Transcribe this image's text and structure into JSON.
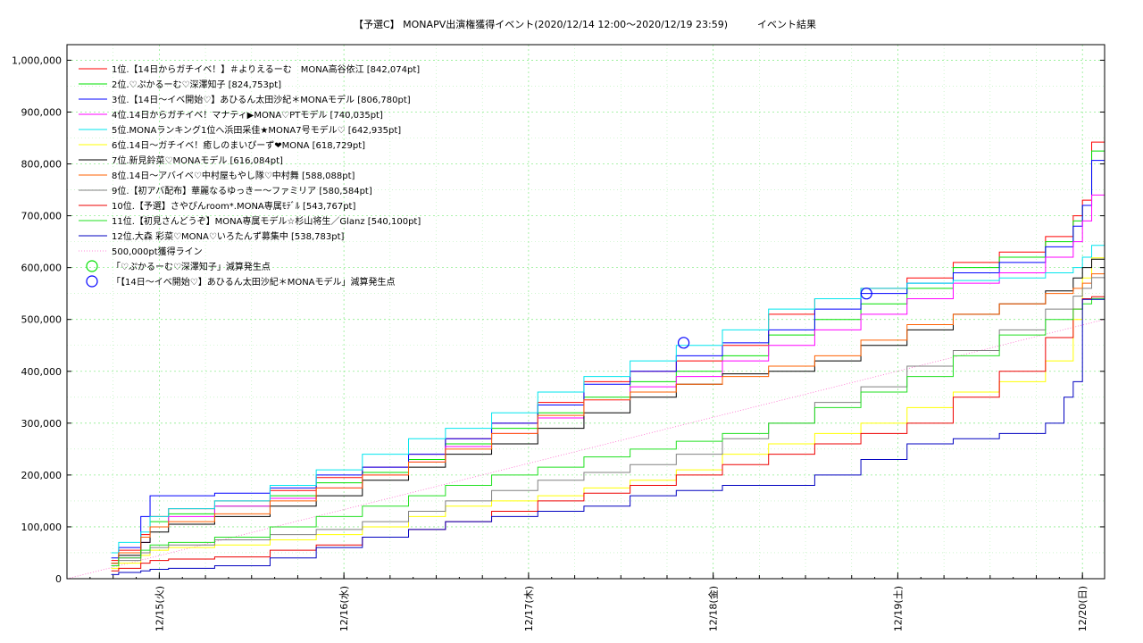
{
  "chart_data": {
    "type": "line",
    "title": "【予選C】 MONAPV出演権獲得イベント(2020/12/14 12:00〜2020/12/19 23:59)　　　イベント結果",
    "xlabel": "",
    "ylabel": "",
    "xlim": [
      0.5,
      6.12
    ],
    "ylim": [
      0,
      1030000
    ],
    "y_ticks": [
      0,
      100000,
      200000,
      300000,
      400000,
      500000,
      600000,
      700000,
      800000,
      900000,
      1000000
    ],
    "y_tick_labels": [
      "0",
      "100,000",
      "200,000",
      "300,000",
      "400,000",
      "500,000",
      "600,000",
      "700,000",
      "800,000",
      "900,000",
      "1,000,000"
    ],
    "x_ticks": [
      1,
      2,
      3,
      4,
      5,
      6
    ],
    "x_tick_labels": [
      "12/15(火)",
      "12/16(水)",
      "12/17(木)",
      "12/18(金)",
      "12/19(土)",
      "12/20(日)"
    ],
    "grid": true,
    "legend_position": "top-left",
    "series": [
      {
        "name": "1位.【14日からガチイベ！】＃よりえるーむ　MONA高谷依江 [842,074pt]",
        "color": "#ff0000",
        "x": [
          0.74,
          0.78,
          0.9,
          0.95,
          1.05,
          1.3,
          1.6,
          1.85,
          2.1,
          2.35,
          2.55,
          2.8,
          3.05,
          3.3,
          3.55,
          3.8,
          4.05,
          4.3,
          4.55,
          4.8,
          5.05,
          5.3,
          5.55,
          5.8,
          5.95,
          6.0,
          6.05,
          6.12
        ],
        "y": [
          35000,
          55000,
          85000,
          120000,
          135000,
          150000,
          170000,
          195000,
          215000,
          240000,
          270000,
          300000,
          340000,
          380000,
          400000,
          420000,
          450000,
          510000,
          540000,
          560000,
          580000,
          610000,
          630000,
          660000,
          700000,
          730000,
          842074,
          842074
        ]
      },
      {
        "name": "2位.♡ぷかるーむ♡深澤知子 [824,753pt]",
        "color": "#00e000",
        "x": [
          0.74,
          0.78,
          0.9,
          0.95,
          1.05,
          1.3,
          1.6,
          1.85,
          2.1,
          2.35,
          2.55,
          2.8,
          3.05,
          3.3,
          3.55,
          3.8,
          4.05,
          4.3,
          4.55,
          4.8,
          5.05,
          5.3,
          5.55,
          5.8,
          5.95,
          6.0,
          6.05,
          6.12
        ],
        "y": [
          30000,
          50000,
          80000,
          110000,
          125000,
          140000,
          160000,
          185000,
          205000,
          230000,
          260000,
          290000,
          320000,
          350000,
          380000,
          400000,
          430000,
          470000,
          500000,
          530000,
          560000,
          600000,
          620000,
          650000,
          690000,
          720000,
          824753,
          824753
        ]
      },
      {
        "name": "3位.【14日〜イベ開始♡】あひるん太田沙紀＊MONAモデル [806,780pt]",
        "color": "#0000ff",
        "x": [
          0.74,
          0.78,
          0.9,
          0.95,
          1.05,
          1.3,
          1.6,
          1.85,
          2.1,
          2.35,
          2.55,
          2.8,
          3.05,
          3.3,
          3.55,
          3.8,
          4.05,
          4.3,
          4.55,
          4.8,
          5.05,
          5.3,
          5.55,
          5.8,
          5.95,
          6.0,
          6.05,
          6.12
        ],
        "y": [
          40000,
          60000,
          120000,
          160000,
          160000,
          165000,
          175000,
          200000,
          215000,
          240000,
          270000,
          300000,
          335000,
          375000,
          400000,
          430000,
          455000,
          480000,
          520000,
          550000,
          570000,
          590000,
          610000,
          640000,
          680000,
          720000,
          806780,
          806780
        ]
      },
      {
        "name": "4位.14日からガチイベ！マナティ▶MONA♡PTモデル [740,035pt]",
        "color": "#ff00ff",
        "x": [
          0.74,
          0.78,
          0.9,
          0.95,
          1.05,
          1.3,
          1.6,
          1.85,
          2.1,
          2.35,
          2.55,
          2.8,
          3.05,
          3.3,
          3.55,
          3.8,
          4.05,
          4.3,
          4.55,
          4.8,
          5.05,
          5.3,
          5.55,
          5.8,
          5.95,
          6.0,
          6.05,
          6.12
        ],
        "y": [
          25000,
          40000,
          70000,
          100000,
          120000,
          140000,
          155000,
          175000,
          200000,
          225000,
          255000,
          280000,
          310000,
          345000,
          370000,
          390000,
          420000,
          450000,
          480000,
          510000,
          540000,
          570000,
          590000,
          620000,
          650000,
          690000,
          740035,
          740035
        ]
      },
      {
        "name": "5位.MONAランキング1位へ浜田采佳★MONA7号モデル♡ [642,935pt]",
        "color": "#00e5ee",
        "x": [
          0.74,
          0.78,
          0.9,
          0.95,
          1.05,
          1.3,
          1.6,
          1.85,
          2.1,
          2.35,
          2.55,
          2.8,
          3.05,
          3.3,
          3.55,
          3.8,
          4.05,
          4.3,
          4.55,
          4.8,
          5.05,
          5.3,
          5.55,
          5.8,
          5.95,
          6.0,
          6.05,
          6.12
        ],
        "y": [
          50000,
          70000,
          90000,
          120000,
          135000,
          150000,
          180000,
          210000,
          240000,
          270000,
          290000,
          320000,
          360000,
          390000,
          420000,
          450000,
          480000,
          520000,
          540000,
          560000,
          570000,
          575000,
          580000,
          590000,
          600000,
          620000,
          642935,
          642935
        ]
      },
      {
        "name": "6位.14日〜ガチイベ！癒しのまいぴーず❤MONA [618,729pt]",
        "color": "#ffff00",
        "x": [
          0.74,
          0.78,
          0.9,
          0.95,
          1.05,
          1.3,
          1.6,
          1.85,
          2.1,
          2.35,
          2.55,
          2.8,
          3.05,
          3.3,
          3.55,
          3.8,
          4.05,
          4.3,
          4.55,
          4.8,
          5.05,
          5.3,
          5.55,
          5.8,
          5.95,
          6.0,
          6.05,
          6.12
        ],
        "y": [
          20000,
          30000,
          45000,
          55000,
          60000,
          65000,
          75000,
          85000,
          100000,
          120000,
          140000,
          150000,
          160000,
          175000,
          190000,
          210000,
          240000,
          260000,
          280000,
          300000,
          330000,
          360000,
          380000,
          420000,
          500000,
          580000,
          618729,
          618729
        ]
      },
      {
        "name": "7位.新見鈴菜♡MONAモデル [616,084pt]",
        "color": "#000000",
        "x": [
          0.74,
          0.78,
          0.9,
          0.95,
          1.05,
          1.3,
          1.6,
          1.85,
          2.1,
          2.35,
          2.55,
          2.8,
          3.05,
          3.3,
          3.55,
          3.8,
          4.05,
          4.3,
          4.55,
          4.8,
          5.05,
          5.3,
          5.55,
          5.8,
          5.95,
          6.0,
          6.05,
          6.12
        ],
        "y": [
          30000,
          45000,
          70000,
          90000,
          105000,
          120000,
          140000,
          160000,
          190000,
          215000,
          240000,
          260000,
          290000,
          320000,
          350000,
          375000,
          395000,
          400000,
          420000,
          450000,
          480000,
          510000,
          530000,
          555000,
          580000,
          600000,
          616084,
          616084
        ]
      },
      {
        "name": "8位.14日〜アバイベ♡中村屋もやし隊♡中村舞 [588,088pt]",
        "color": "#ff6000",
        "x": [
          0.74,
          0.78,
          0.9,
          0.95,
          1.05,
          1.3,
          1.6,
          1.85,
          2.1,
          2.35,
          2.55,
          2.8,
          3.05,
          3.3,
          3.55,
          3.8,
          4.05,
          4.3,
          4.55,
          4.8,
          5.05,
          5.3,
          5.55,
          5.8,
          5.95,
          6.0,
          6.05,
          6.12
        ],
        "y": [
          30000,
          50000,
          80000,
          100000,
          110000,
          125000,
          150000,
          175000,
          200000,
          225000,
          250000,
          280000,
          315000,
          345000,
          360000,
          375000,
          390000,
          410000,
          430000,
          460000,
          490000,
          510000,
          530000,
          550000,
          560000,
          570000,
          588088,
          588088
        ]
      },
      {
        "name": "9位.【初アバ配布】華麗なるゆっきー〜ファミリア [580,584pt]",
        "color": "#808080",
        "x": [
          0.74,
          0.78,
          0.9,
          0.95,
          1.05,
          1.3,
          1.6,
          1.85,
          2.1,
          2.35,
          2.55,
          2.8,
          3.05,
          3.3,
          3.55,
          3.8,
          4.05,
          4.3,
          4.55,
          4.8,
          5.05,
          5.3,
          5.55,
          5.8,
          5.95,
          6.0,
          6.05,
          6.12
        ],
        "y": [
          25000,
          35000,
          50000,
          60000,
          65000,
          75000,
          85000,
          95000,
          110000,
          130000,
          150000,
          170000,
          190000,
          205000,
          220000,
          240000,
          270000,
          300000,
          340000,
          370000,
          410000,
          440000,
          480000,
          520000,
          545000,
          560000,
          580584,
          580584
        ]
      },
      {
        "name": "10位.【予選】さやぴんroom*.MONA専属ﾓﾃﾞﾙ [543,767pt]",
        "color": "#ee0000",
        "x": [
          0.74,
          0.78,
          0.9,
          0.95,
          1.05,
          1.3,
          1.6,
          1.85,
          2.1,
          2.35,
          2.55,
          2.8,
          3.05,
          3.3,
          3.55,
          3.8,
          4.05,
          4.3,
          4.55,
          4.8,
          5.05,
          5.3,
          5.55,
          5.8,
          5.95,
          6.0,
          6.05,
          6.12
        ],
        "y": [
          15000,
          20000,
          30000,
          35000,
          38000,
          42000,
          55000,
          65000,
          80000,
          95000,
          110000,
          130000,
          150000,
          165000,
          180000,
          200000,
          220000,
          240000,
          260000,
          280000,
          300000,
          350000,
          400000,
          465000,
          520000,
          540000,
          543767,
          543767
        ]
      },
      {
        "name": "11位.【初見さんどうぞ】MONA専属モデル☆杉山将生／Glanz [540,100pt]",
        "color": "#20e020",
        "x": [
          0.74,
          0.78,
          0.9,
          0.95,
          1.05,
          1.3,
          1.6,
          1.85,
          2.1,
          2.35,
          2.55,
          2.8,
          3.05,
          3.3,
          3.55,
          3.8,
          4.05,
          4.3,
          4.55,
          4.8,
          5.05,
          5.3,
          5.55,
          5.8,
          5.95,
          6.0,
          6.05,
          6.12
        ],
        "y": [
          25000,
          40000,
          55000,
          65000,
          70000,
          80000,
          100000,
          120000,
          140000,
          160000,
          180000,
          200000,
          215000,
          235000,
          250000,
          265000,
          280000,
          300000,
          330000,
          360000,
          390000,
          430000,
          470000,
          500000,
          520000,
          530000,
          540100,
          540100
        ]
      },
      {
        "name": "12位.大森 彩菜♡MONA♡いろたんず募集中 [538,783pt]",
        "color": "#0000c0",
        "x": [
          0.74,
          0.78,
          0.9,
          0.95,
          1.05,
          1.3,
          1.6,
          1.85,
          2.1,
          2.35,
          2.55,
          2.8,
          3.05,
          3.3,
          3.55,
          3.8,
          4.05,
          4.3,
          4.55,
          4.8,
          5.05,
          5.3,
          5.55,
          5.8,
          5.9,
          5.95,
          6.0,
          6.12
        ],
        "y": [
          8000,
          12000,
          15000,
          18000,
          20000,
          25000,
          40000,
          60000,
          80000,
          95000,
          110000,
          120000,
          130000,
          140000,
          160000,
          170000,
          180000,
          180000,
          200000,
          230000,
          260000,
          270000,
          280000,
          300000,
          350000,
          380000,
          538783,
          538783
        ]
      }
    ],
    "reference_line": {
      "name": "500,000pt獲得ライン",
      "color": "#ff66cc",
      "x": [
        0.5,
        6.12
      ],
      "y": [
        0,
        500000
      ]
    },
    "markers": [
      {
        "name": "「♡ぷかるーむ♡深澤知子」減算発生点",
        "color": "#00e000",
        "points": []
      },
      {
        "name": "「【14日〜イベ開始♡】あひるん太田沙紀＊MONAモデル」減算発生点",
        "color": "#0000ff",
        "points": [
          {
            "x": 3.84,
            "y": 455000
          },
          {
            "x": 4.83,
            "y": 550000
          }
        ]
      }
    ]
  }
}
